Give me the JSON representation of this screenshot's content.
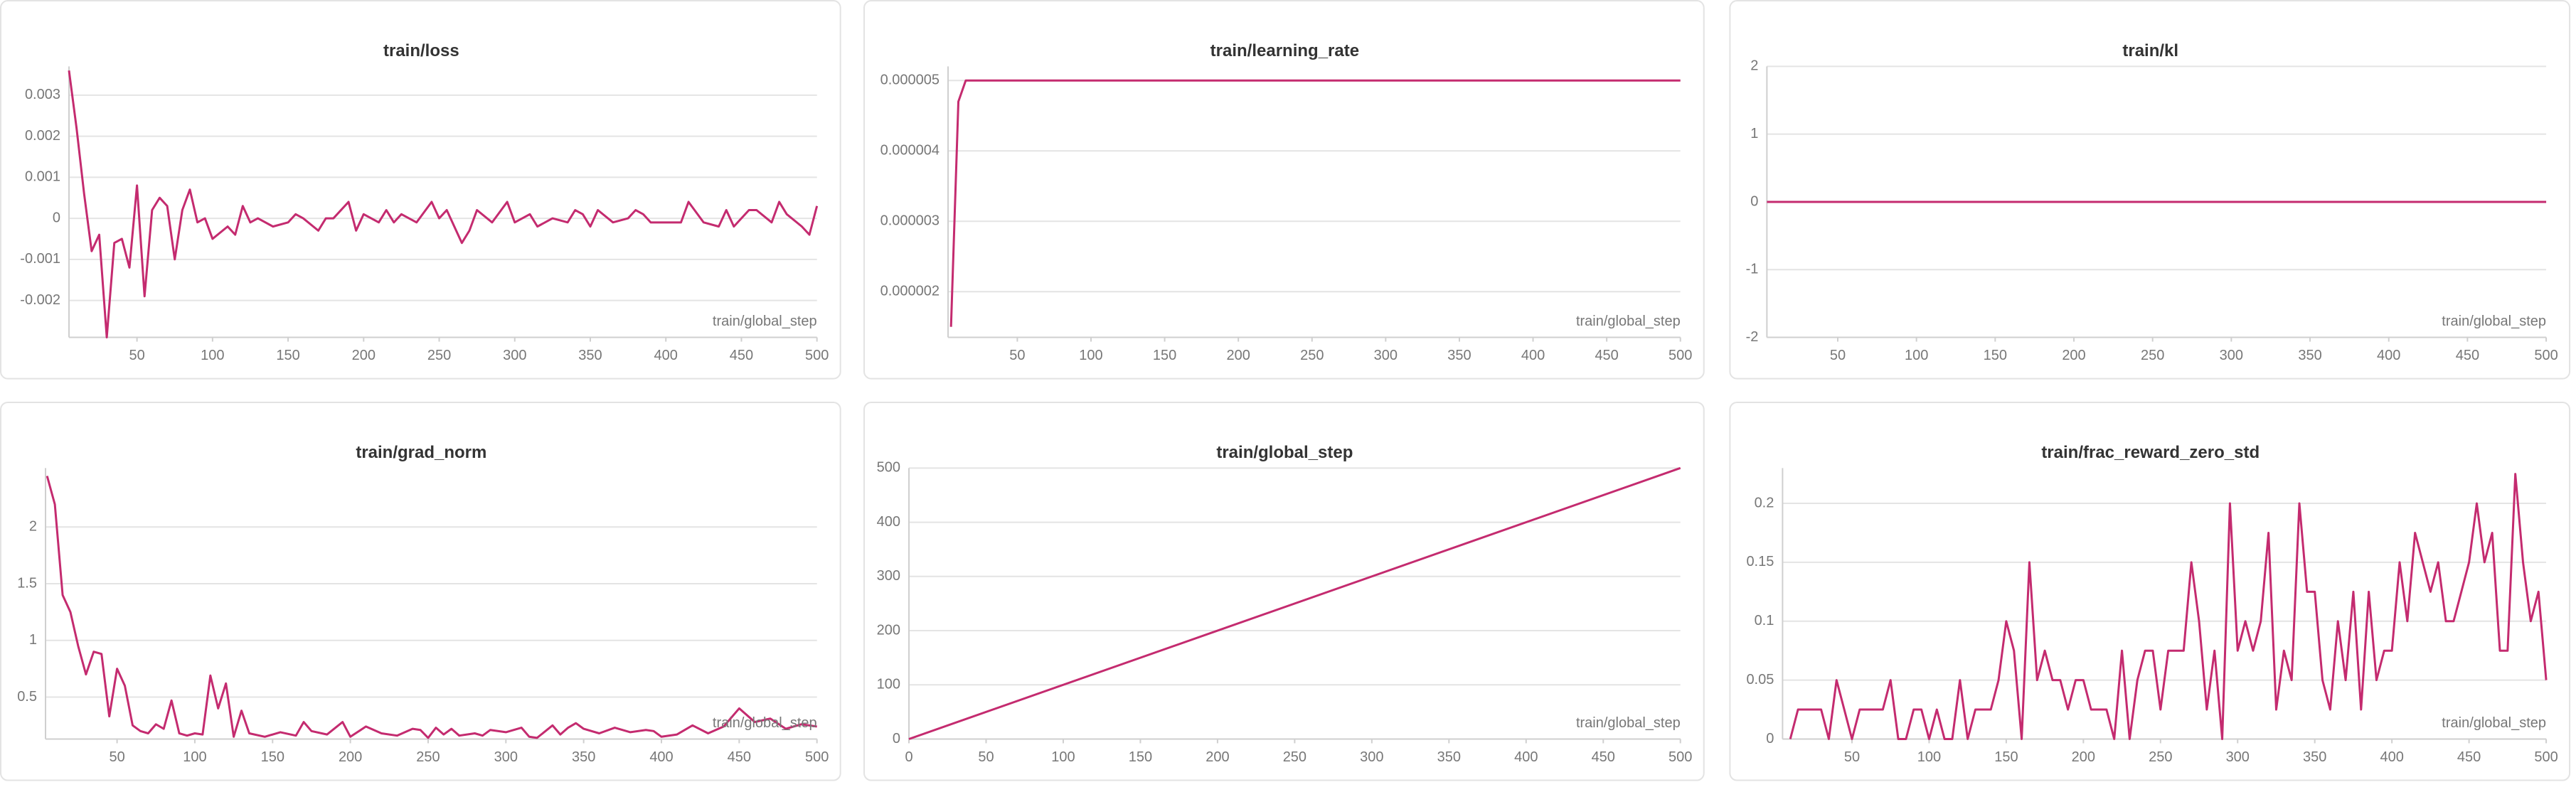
{
  "chart_data": [
    {
      "type": "line",
      "title": "train/loss",
      "xlabel": "train/global_step",
      "color": "#c42b6f",
      "grid": true,
      "x": [
        5,
        10,
        15,
        20,
        25,
        30,
        35,
        40,
        45,
        50,
        55,
        60,
        65,
        70,
        75,
        80,
        85,
        90,
        95,
        100,
        110,
        115,
        120,
        125,
        130,
        140,
        150,
        155,
        160,
        170,
        175,
        180,
        190,
        195,
        200,
        210,
        215,
        220,
        225,
        235,
        245,
        250,
        255,
        265,
        270,
        275,
        285,
        295,
        300,
        310,
        315,
        325,
        335,
        340,
        345,
        350,
        355,
        365,
        375,
        380,
        385,
        390,
        410,
        415,
        425,
        435,
        440,
        445,
        455,
        460,
        470,
        475,
        480,
        490,
        495,
        500
      ],
      "values": [
        0.0036,
        0.0022,
        0.0006,
        -0.0008,
        -0.0004,
        -0.0029,
        -0.0006,
        -0.0005,
        -0.0012,
        0.0008,
        -0.0019,
        0.0002,
        0.0005,
        0.0003,
        -0.001,
        0.0002,
        0.0007,
        -0.0001,
        0,
        -0.0005,
        -0.0002,
        -0.0004,
        0.0003,
        -0.0001,
        0,
        -0.0002,
        -0.0001,
        0.0001,
        0,
        -0.0003,
        0,
        0,
        0.0004,
        -0.0003,
        0.0001,
        -0.0001,
        0.0002,
        -0.0001,
        0.0001,
        -0.0001,
        0.0004,
        0,
        0.0002,
        -0.0006,
        -0.0003,
        0.0002,
        -0.0001,
        0.0004,
        -0.0001,
        0.0001,
        -0.0002,
        0,
        -0.0001,
        0.0002,
        0.0001,
        -0.0002,
        0.0002,
        -0.0001,
        0,
        0.0002,
        0.0001,
        -0.0001,
        -0.0001,
        0.0004,
        -0.0001,
        -0.0002,
        0.0002,
        -0.0002,
        0.0002,
        0.0002,
        -0.0001,
        0.0004,
        0.0001,
        -0.0002,
        -0.0004,
        0.0003
      ],
      "xlim": [
        5,
        500
      ],
      "ylim": [
        -0.0029,
        0.0037
      ],
      "xticks": [
        50,
        100,
        150,
        200,
        250,
        300,
        350,
        400,
        450,
        500
      ],
      "yticks": [
        -0.002,
        -0.001,
        0,
        0.001,
        0.002,
        0.003
      ]
    },
    {
      "type": "line",
      "title": "train/learning_rate",
      "xlabel": "train/global_step",
      "color": "#c42b6f",
      "grid": true,
      "x": [
        5,
        10,
        15,
        20,
        500
      ],
      "values": [
        1.5e-06,
        4.7e-06,
        5e-06,
        5e-06,
        5e-06
      ],
      "xlim": [
        3,
        500
      ],
      "ylim": [
        1.35e-06,
        5.2e-06
      ],
      "xticks": [
        50,
        100,
        150,
        200,
        250,
        300,
        350,
        400,
        450,
        500
      ],
      "yticks": [
        2e-06,
        3e-06,
        4e-06,
        5e-06
      ]
    },
    {
      "type": "line",
      "title": "train/kl",
      "xlabel": "train/global_step",
      "color": "#c42b6f",
      "grid": true,
      "x": [
        5,
        500
      ],
      "values": [
        0,
        0
      ],
      "xlim": [
        5,
        500
      ],
      "ylim": [
        -2,
        2
      ],
      "xticks": [
        50,
        100,
        150,
        200,
        250,
        300,
        350,
        400,
        450,
        500
      ],
      "yticks": [
        -2,
        -1,
        0,
        1,
        2
      ]
    },
    {
      "type": "line",
      "title": "train/grad_norm",
      "xlabel": "train/global_step",
      "color": "#c42b6f",
      "grid": true,
      "x": [
        5,
        10,
        15,
        20,
        25,
        30,
        35,
        40,
        45,
        50,
        55,
        60,
        65,
        70,
        75,
        80,
        85,
        90,
        95,
        100,
        105,
        110,
        115,
        120,
        125,
        130,
        135,
        145,
        155,
        165,
        170,
        175,
        185,
        195,
        200,
        210,
        220,
        230,
        240,
        245,
        250,
        255,
        260,
        265,
        270,
        280,
        285,
        290,
        300,
        310,
        315,
        320,
        330,
        335,
        340,
        345,
        350,
        360,
        370,
        380,
        390,
        395,
        400,
        410,
        420,
        430,
        440,
        450,
        460,
        470,
        480,
        490,
        500
      ],
      "values": [
        2.45,
        2.2,
        1.4,
        1.25,
        0.95,
        0.7,
        0.9,
        0.88,
        0.33,
        0.75,
        0.6,
        0.25,
        0.2,
        0.18,
        0.26,
        0.22,
        0.47,
        0.18,
        0.16,
        0.18,
        0.17,
        0.69,
        0.4,
        0.62,
        0.15,
        0.38,
        0.18,
        0.15,
        0.19,
        0.16,
        0.28,
        0.2,
        0.17,
        0.28,
        0.15,
        0.24,
        0.18,
        0.16,
        0.22,
        0.21,
        0.14,
        0.23,
        0.17,
        0.22,
        0.16,
        0.18,
        0.16,
        0.21,
        0.19,
        0.23,
        0.15,
        0.14,
        0.25,
        0.17,
        0.23,
        0.27,
        0.22,
        0.18,
        0.23,
        0.19,
        0.21,
        0.2,
        0.15,
        0.17,
        0.25,
        0.18,
        0.24,
        0.4,
        0.28,
        0.31,
        0.22,
        0.26,
        0.24
      ],
      "xlim": [
        4,
        500
      ],
      "ylim": [
        0.13,
        2.52
      ],
      "xticks": [
        50,
        100,
        150,
        200,
        250,
        300,
        350,
        400,
        450,
        500
      ],
      "yticks": [
        0.5,
        1,
        1.5,
        2
      ]
    },
    {
      "type": "line",
      "title": "train/global_step",
      "xlabel": "train/global_step",
      "color": "#c42b6f",
      "grid": true,
      "x": [
        0,
        500
      ],
      "values": [
        0,
        500
      ],
      "xlim": [
        0,
        500
      ],
      "ylim": [
        0,
        500
      ],
      "xticks": [
        0,
        50,
        100,
        150,
        200,
        250,
        300,
        350,
        400,
        450,
        500
      ],
      "yticks": [
        0,
        100,
        200,
        300,
        400,
        500
      ]
    },
    {
      "type": "line",
      "title": "train/frac_reward_zero_std",
      "xlabel": "train/global_step",
      "color": "#c42b6f",
      "grid": true,
      "x": [
        10,
        15,
        20,
        25,
        30,
        35,
        40,
        45,
        50,
        55,
        60,
        65,
        70,
        75,
        80,
        85,
        90,
        95,
        100,
        105,
        110,
        115,
        120,
        125,
        130,
        135,
        140,
        145,
        150,
        155,
        160,
        165,
        170,
        175,
        180,
        185,
        190,
        195,
        200,
        205,
        210,
        215,
        220,
        225,
        230,
        235,
        240,
        245,
        250,
        255,
        260,
        265,
        270,
        275,
        280,
        285,
        290,
        295,
        300,
        305,
        310,
        315,
        320,
        325,
        330,
        335,
        340,
        345,
        350,
        355,
        360,
        365,
        370,
        375,
        380,
        385,
        390,
        395,
        400,
        405,
        410,
        415,
        420,
        425,
        430,
        435,
        440,
        445,
        450,
        455,
        460,
        465,
        470,
        475,
        480,
        485,
        490,
        495,
        500
      ],
      "values": [
        0,
        0.025,
        0.025,
        0.025,
        0.025,
        0,
        0.05,
        0.025,
        0,
        0.025,
        0.025,
        0.025,
        0.025,
        0.05,
        0,
        0,
        0.025,
        0.025,
        0,
        0.025,
        0,
        0,
        0.05,
        0,
        0.025,
        0.025,
        0.025,
        0.05,
        0.1,
        0.075,
        0,
        0.15,
        0.05,
        0.075,
        0.05,
        0.05,
        0.025,
        0.05,
        0.05,
        0.025,
        0.025,
        0.025,
        0,
        0.075,
        0,
        0.05,
        0.075,
        0.075,
        0.025,
        0.075,
        0.075,
        0.075,
        0.15,
        0.1,
        0.025,
        0.075,
        0,
        0.2,
        0.075,
        0.1,
        0.075,
        0.1,
        0.175,
        0.025,
        0.075,
        0.05,
        0.2,
        0.125,
        0.125,
        0.05,
        0.025,
        0.1,
        0.05,
        0.125,
        0.025,
        0.125,
        0.05,
        0.075,
        0.075,
        0.15,
        0.1,
        0.175,
        0.15,
        0.125,
        0.15,
        0.1,
        0.1,
        0.125,
        0.15,
        0.2,
        0.15,
        0.175,
        0.075,
        0.075,
        0.225,
        0.15,
        0.1,
        0.125,
        0.05
      ],
      "xlim": [
        5,
        500
      ],
      "ylim": [
        0,
        0.23
      ],
      "xticks": [
        50,
        100,
        150,
        200,
        250,
        300,
        350,
        400,
        450,
        500
      ],
      "yticks": [
        0,
        0.05,
        0.1,
        0.15,
        0.2
      ]
    }
  ]
}
